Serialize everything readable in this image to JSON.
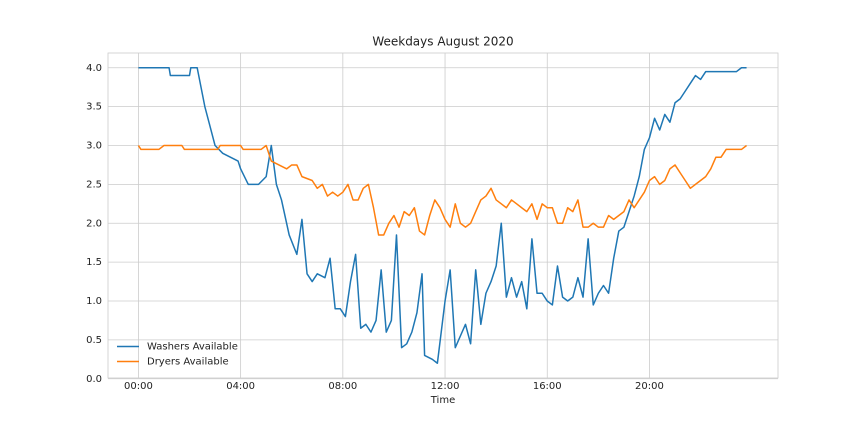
{
  "chart_data": {
    "type": "line",
    "title": "Weekdays August 2020",
    "x_label": "Time",
    "xlim": [
      -1.19,
      25.03
    ],
    "ylim": [
      0.01,
      4.19
    ],
    "xticks": [
      {
        "value": 0,
        "label": "00:00"
      },
      {
        "value": 4,
        "label": "04:00"
      },
      {
        "value": 8,
        "label": "08:00"
      },
      {
        "value": 12,
        "label": "12:00"
      },
      {
        "value": 16,
        "label": "16:00"
      },
      {
        "value": 20,
        "label": "20:00"
      }
    ],
    "yticks": [
      {
        "value": 0,
        "label": "0.0"
      },
      {
        "value": 0.5,
        "label": "0.5"
      },
      {
        "value": 1,
        "label": "1.0"
      },
      {
        "value": 1.5,
        "label": "1.5"
      },
      {
        "value": 2,
        "label": "2.0"
      },
      {
        "value": 2.5,
        "label": "2.5"
      },
      {
        "value": 3,
        "label": "3.0"
      },
      {
        "value": 3.5,
        "label": "3.5"
      },
      {
        "value": 4,
        "label": "4.0"
      }
    ],
    "grid": true,
    "legend": "lower left",
    "series": [
      {
        "name": "Washers Available",
        "color": "#1f77b4",
        "x": [
          0,
          1.2,
          1.25,
          2.0,
          2.05,
          2.3,
          2.6,
          2.8,
          3.0,
          3.3,
          3.6,
          3.9,
          4.0,
          4.3,
          4.7,
          5.0,
          5.2,
          5.4,
          5.6,
          5.9,
          6.2,
          6.4,
          6.6,
          6.8,
          7.0,
          7.3,
          7.5,
          7.7,
          7.9,
          8.1,
          8.3,
          8.5,
          8.7,
          8.9,
          9.1,
          9.3,
          9.5,
          9.7,
          9.9,
          10.1,
          10.3,
          10.5,
          10.7,
          10.9,
          11.1,
          11.2,
          11.5,
          11.7,
          12.0,
          12.2,
          12.4,
          12.6,
          12.8,
          13.0,
          13.2,
          13.4,
          13.6,
          13.8,
          14.0,
          14.2,
          14.4,
          14.6,
          14.8,
          15.0,
          15.2,
          15.4,
          15.6,
          15.8,
          16.0,
          16.2,
          16.4,
          16.6,
          16.8,
          17.0,
          17.2,
          17.4,
          17.6,
          17.8,
          18.0,
          18.2,
          18.4,
          18.6,
          18.8,
          19.0,
          19.2,
          19.4,
          19.6,
          19.8,
          20.0,
          20.2,
          20.4,
          20.6,
          20.8,
          21.0,
          21.2,
          21.4,
          21.6,
          21.8,
          22.0,
          22.2,
          23.4,
          23.6,
          23.8
        ],
        "values": [
          4.0,
          4.0,
          3.9,
          3.9,
          4.0,
          4.0,
          3.5,
          3.25,
          3.0,
          2.9,
          2.85,
          2.8,
          2.7,
          2.5,
          2.5,
          2.6,
          3.0,
          2.5,
          2.3,
          1.85,
          1.6,
          2.05,
          1.35,
          1.25,
          1.35,
          1.3,
          1.55,
          0.9,
          0.9,
          0.8,
          1.25,
          1.6,
          0.65,
          0.7,
          0.6,
          0.75,
          1.4,
          0.6,
          0.75,
          1.85,
          0.4,
          0.45,
          0.6,
          0.85,
          1.35,
          0.3,
          0.25,
          0.2,
          1.0,
          1.4,
          0.4,
          0.55,
          0.7,
          0.45,
          1.4,
          0.7,
          1.1,
          1.25,
          1.45,
          2.0,
          1.05,
          1.3,
          1.05,
          1.25,
          0.9,
          1.8,
          1.1,
          1.1,
          1.0,
          0.95,
          1.45,
          1.05,
          1.0,
          1.05,
          1.3,
          1.05,
          1.8,
          0.95,
          1.1,
          1.2,
          1.1,
          1.55,
          1.9,
          1.95,
          2.15,
          2.35,
          2.6,
          2.95,
          3.1,
          3.35,
          3.2,
          3.4,
          3.3,
          3.55,
          3.6,
          3.7,
          3.8,
          3.9,
          3.85,
          3.95,
          3.95,
          4.0,
          4.0
        ]
      },
      {
        "name": "Dryers Available",
        "color": "#ff7f0e",
        "x": [
          0,
          0.1,
          0.8,
          1.0,
          1.7,
          1.8,
          3.1,
          3.2,
          4.0,
          4.1,
          4.8,
          5.0,
          5.2,
          5.5,
          5.8,
          6.0,
          6.2,
          6.4,
          6.8,
          7.0,
          7.2,
          7.4,
          7.6,
          7.8,
          8.0,
          8.2,
          8.4,
          8.6,
          8.8,
          9.0,
          9.2,
          9.4,
          9.6,
          9.8,
          10.0,
          10.2,
          10.4,
          10.6,
          10.8,
          11.0,
          11.2,
          11.4,
          11.6,
          11.8,
          12.0,
          12.2,
          12.4,
          12.6,
          12.8,
          13.0,
          13.2,
          13.4,
          13.6,
          13.8,
          14.0,
          14.2,
          14.4,
          14.6,
          14.8,
          15.0,
          15.2,
          15.4,
          15.6,
          15.8,
          16.0,
          16.2,
          16.4,
          16.6,
          16.8,
          17.0,
          17.2,
          17.4,
          17.6,
          17.8,
          18.0,
          18.2,
          18.4,
          18.6,
          18.8,
          19.0,
          19.2,
          19.4,
          19.6,
          19.8,
          20.0,
          20.2,
          20.4,
          20.6,
          20.8,
          21.0,
          21.2,
          21.4,
          21.6,
          21.8,
          22.0,
          22.2,
          22.4,
          22.6,
          22.8,
          23.0,
          23.4,
          23.6,
          23.8
        ],
        "values": [
          3.0,
          2.95,
          2.95,
          3.0,
          3.0,
          2.95,
          2.95,
          3.0,
          3.0,
          2.95,
          2.95,
          3.0,
          2.8,
          2.75,
          2.7,
          2.75,
          2.75,
          2.6,
          2.55,
          2.45,
          2.5,
          2.35,
          2.4,
          2.35,
          2.4,
          2.5,
          2.3,
          2.3,
          2.45,
          2.5,
          2.2,
          1.85,
          1.85,
          2.0,
          2.1,
          1.95,
          2.15,
          2.1,
          2.2,
          1.9,
          1.85,
          2.1,
          2.3,
          2.2,
          2.05,
          1.95,
          2.25,
          2.0,
          1.95,
          2.0,
          2.15,
          2.3,
          2.35,
          2.45,
          2.3,
          2.25,
          2.2,
          2.3,
          2.25,
          2.2,
          2.15,
          2.25,
          2.05,
          2.25,
          2.2,
          2.2,
          2.0,
          2.0,
          2.2,
          2.15,
          2.3,
          1.95,
          1.95,
          2.0,
          1.95,
          1.95,
          2.1,
          2.05,
          2.1,
          2.15,
          2.3,
          2.2,
          2.3,
          2.4,
          2.55,
          2.6,
          2.5,
          2.55,
          2.7,
          2.75,
          2.65,
          2.55,
          2.45,
          2.5,
          2.55,
          2.6,
          2.7,
          2.85,
          2.85,
          2.95,
          2.95,
          2.95,
          3.0
        ]
      }
    ]
  }
}
